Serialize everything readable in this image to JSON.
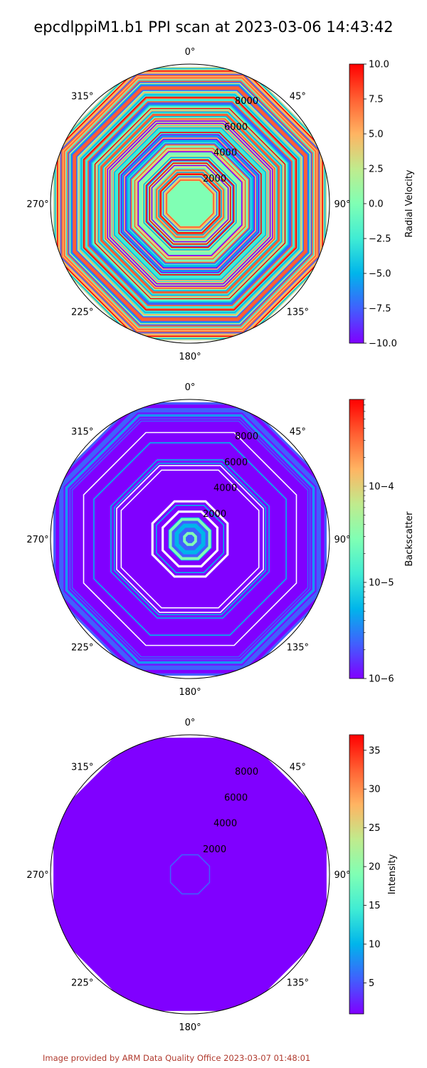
{
  "title": "epcdlppiM1.b1 PPI scan at 2023-03-06 14:43:42",
  "footer": "Image provided by ARM Data Quality Office 2023-03-07 01:48:01",
  "colors": {
    "rainbow": [
      "#8000ff",
      "#4060fd",
      "#00b5eb",
      "#40ecd4",
      "#80ffb4",
      "#c0eb8d",
      "#ffb462",
      "#ff6032",
      "#ff0000"
    ]
  },
  "chart_data": [
    {
      "type": "polar-ppi",
      "theta_labels": [
        "0°",
        "45°",
        "90°",
        "135°",
        "180°",
        "225°",
        "270°",
        "315°"
      ],
      "r_ticks": [
        2000,
        4000,
        6000,
        8000
      ],
      "rmax": 10000,
      "colorbar": {
        "label": "Radial Velocity",
        "scale": "linear",
        "range": [
          -10.0,
          10.0
        ],
        "ticks": [
          10.0,
          7.5,
          5.0,
          2.5,
          0.0,
          -2.5,
          -5.0,
          -7.5,
          -10.0
        ],
        "tick_labels": [
          "10.0",
          "7.5",
          "5.0",
          "2.5",
          "0.0",
          "−2.5",
          "−5.0",
          "−7.5",
          "−10.0"
        ]
      }
    },
    {
      "type": "polar-ppi",
      "theta_labels": [
        "0°",
        "45°",
        "90°",
        "135°",
        "180°",
        "225°",
        "270°",
        "315°"
      ],
      "r_ticks": [
        2000,
        4000,
        6000,
        8000
      ],
      "rmax": 10000,
      "colorbar": {
        "label": "Backscatter",
        "scale": "log",
        "range": [
          1e-06,
          0.0008
        ],
        "ticks": [
          0.0001,
          1e-05,
          1e-06
        ],
        "tick_labels": [
          "10−4",
          "10−5",
          "10−6"
        ]
      }
    },
    {
      "type": "polar-ppi",
      "theta_labels": [
        "0°",
        "45°",
        "90°",
        "135°",
        "180°",
        "225°",
        "270°",
        "315°"
      ],
      "r_ticks": [
        2000,
        4000,
        6000,
        8000
      ],
      "rmax": 10000,
      "colorbar": {
        "label": "Intensity",
        "scale": "linear",
        "range": [
          1,
          37
        ],
        "ticks": [
          35,
          30,
          25,
          20,
          15,
          10,
          5
        ],
        "tick_labels": [
          "35",
          "30",
          "25",
          "20",
          "15",
          "10",
          "5"
        ]
      }
    }
  ]
}
